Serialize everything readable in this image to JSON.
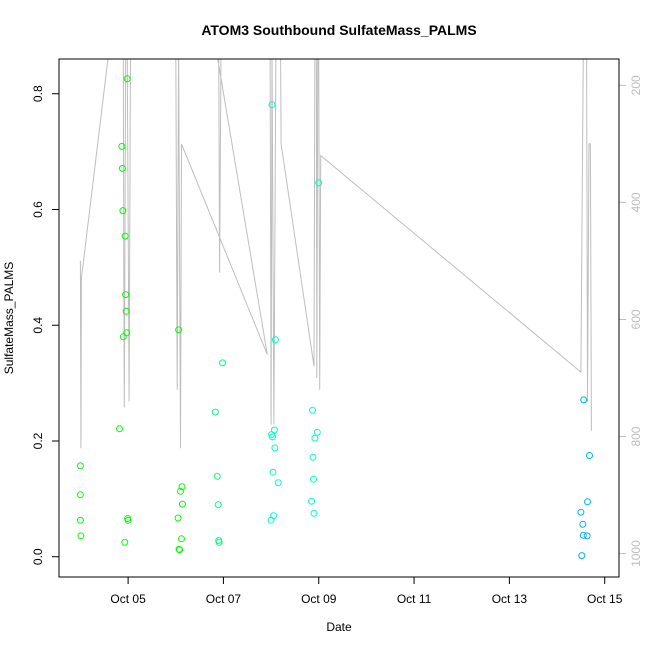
{
  "chart_data": {
    "type": "scatter",
    "title": "ATOM3 Southbound SulfateMass_PALMS",
    "xlabel": "Date",
    "ylabel": "SulfateMass_PALMS",
    "x_unit": "day of October",
    "xlim": [
      3.55,
      15.3
    ],
    "ylim": [
      -0.035,
      0.86
    ],
    "x_ticks": [
      {
        "value": 5,
        "label": "Oct 05"
      },
      {
        "value": 7,
        "label": "Oct 07"
      },
      {
        "value": 9,
        "label": "Oct 09"
      },
      {
        "value": 11,
        "label": "Oct 11"
      },
      {
        "value": 13,
        "label": "Oct 13"
      },
      {
        "value": 15,
        "label": "Oct 15"
      }
    ],
    "y_ticks": [
      0.0,
      0.2,
      0.4,
      0.6,
      0.8
    ],
    "y_tick_labels": [
      "0.0",
      "0.2",
      "0.4",
      "0.6",
      "0.8"
    ],
    "y2_lim": [
      1040,
      155
    ],
    "y2_ticks": [
      200,
      400,
      600,
      800,
      1000
    ],
    "y2_tick_labels": [
      "200",
      "400",
      "600",
      "800",
      "1000"
    ],
    "grid": false,
    "legend": "none",
    "colors": {
      "line": "#bebebe",
      "axis": "#000000",
      "right_axis": "#bebebe"
    },
    "series": [
      {
        "color": "#00ff00",
        "points": [
          [
            4.0,
            0.157
          ],
          [
            4.0,
            0.107
          ],
          [
            4.0,
            0.063
          ],
          [
            4.01,
            0.036
          ],
          [
            4.82,
            0.221
          ],
          [
            4.87,
            0.709
          ],
          [
            4.88,
            0.671
          ],
          [
            4.89,
            0.598
          ],
          [
            4.9,
            0.38
          ],
          [
            4.93,
            0.025
          ],
          [
            4.94,
            0.554
          ],
          [
            4.95,
            0.453
          ],
          [
            4.96,
            0.424
          ],
          [
            4.97,
            0.387
          ],
          [
            4.98,
            0.826
          ],
          [
            4.99,
            0.066
          ],
          [
            5.0,
            0.063
          ],
          [
            6.05,
            0.067
          ],
          [
            6.06,
            0.392
          ],
          [
            6.07,
            0.013
          ],
          [
            6.08,
            0.012
          ],
          [
            6.1,
            0.113
          ],
          [
            6.12,
            0.031
          ],
          [
            6.13,
            0.121
          ],
          [
            6.14,
            0.091
          ]
        ]
      },
      {
        "color": "#00ff80",
        "points": [
          [
            6.83,
            0.25
          ],
          [
            6.87,
            0.139
          ],
          [
            6.89,
            0.09
          ],
          [
            6.9,
            0.028
          ],
          [
            6.91,
            0.025
          ],
          [
            6.98,
            0.335
          ]
        ]
      },
      {
        "color": "#00ffc0",
        "points": [
          [
            8.0,
            0.063
          ],
          [
            8.01,
            0.211
          ],
          [
            8.02,
            0.781
          ],
          [
            8.03,
            0.207
          ],
          [
            8.04,
            0.146
          ],
          [
            8.05,
            0.071
          ],
          [
            8.07,
            0.219
          ],
          [
            8.08,
            0.188
          ],
          [
            8.09,
            0.375
          ],
          [
            8.15,
            0.128
          ],
          [
            8.85,
            0.096
          ],
          [
            8.87,
            0.253
          ],
          [
            8.88,
            0.172
          ],
          [
            8.89,
            0.134
          ],
          [
            8.9,
            0.075
          ],
          [
            8.92,
            0.205
          ],
          [
            8.97,
            0.215
          ],
          [
            9.0,
            0.646
          ]
        ]
      },
      {
        "color": "#00b0ff",
        "points": [
          [
            14.5,
            0.077
          ],
          [
            14.52,
            0.002
          ],
          [
            14.54,
            0.056
          ],
          [
            14.55,
            0.037
          ],
          [
            14.56,
            0.271
          ],
          [
            14.63,
            0.036
          ],
          [
            14.64,
            0.095
          ],
          [
            14.68,
            0.175
          ]
        ]
      }
    ],
    "pressure_track": [
      [
        4.0,
        500
      ],
      [
        4.01,
        820
      ],
      [
        4.02,
        530
      ],
      [
        4.6,
        140
      ],
      [
        4.9,
        140
      ],
      [
        4.91,
        520
      ],
      [
        4.92,
        750
      ],
      [
        4.95,
        130
      ],
      [
        4.98,
        130
      ],
      [
        5.02,
        740
      ],
      [
        5.05,
        140
      ],
      [
        6.0,
        140
      ],
      [
        6.03,
        720
      ],
      [
        6.06,
        130
      ],
      [
        6.1,
        820
      ],
      [
        6.12,
        300
      ],
      [
        7.92,
        660
      ],
      [
        6.85,
        140
      ],
      [
        6.9,
        140
      ],
      [
        6.92,
        520
      ],
      [
        6.95,
        140
      ],
      [
        7.98,
        140
      ],
      [
        8.0,
        780
      ],
      [
        8.02,
        140
      ],
      [
        8.06,
        780
      ],
      [
        8.1,
        140
      ],
      [
        8.2,
        140
      ],
      [
        8.21,
        300
      ],
      [
        8.9,
        680
      ],
      [
        8.92,
        140
      ],
      [
        8.95,
        140
      ],
      [
        8.96,
        700
      ],
      [
        8.98,
        140
      ],
      [
        9.0,
        140
      ],
      [
        9.02,
        720
      ],
      [
        9.04,
        320
      ],
      [
        14.5,
        690
      ],
      [
        14.55,
        140
      ],
      [
        14.62,
        140
      ],
      [
        14.64,
        740
      ],
      [
        14.67,
        300
      ],
      [
        14.7,
        300
      ],
      [
        14.72,
        790
      ]
    ]
  }
}
